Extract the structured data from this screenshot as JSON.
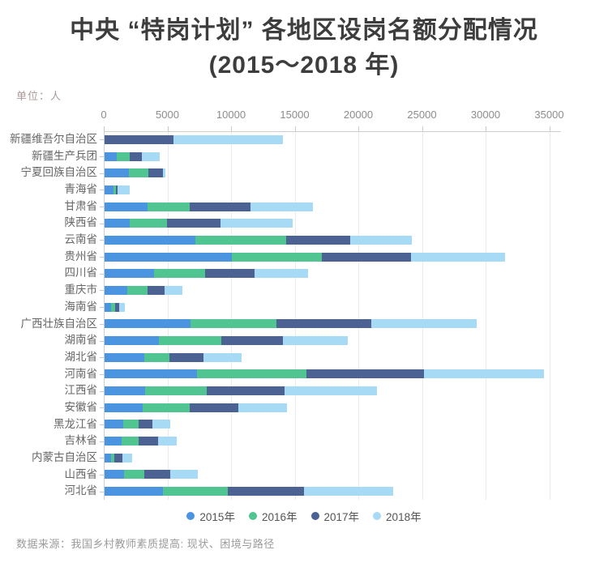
{
  "title": {
    "line1": "中央 “特岗计划” 各地区设岗名额分配情况",
    "line2": "(2015～2018 年)"
  },
  "unit_label": "单位：人",
  "source": "数据来源：我国乡村教师素质提高: 现状、困境与路径",
  "colors": {
    "y2015": "#4b94e0",
    "y2016": "#50c592",
    "y2017": "#4c6292",
    "y2018": "#a6daf5",
    "title_text": "#3d3d3d",
    "axis_text": "#8c8c8c",
    "category_text": "#666666",
    "unit_text": "#ad9a9a",
    "source_text": "#9b9b9b",
    "grid": "#ebebeb"
  },
  "chart_data": {
    "type": "bar",
    "orientation": "horizontal-stacked",
    "title": "中央 “特岗计划” 各地区设岗名额分配情况 (2015～2018 年)",
    "unit": "人",
    "grid": true,
    "legend_position": "bottom",
    "xlim": [
      0,
      36000
    ],
    "xticks": [
      0,
      5000,
      10000,
      15000,
      20000,
      25000,
      30000,
      35000
    ],
    "categories": [
      "新疆维吾尔自治区",
      "新疆生产兵团",
      "宁夏回族自治区",
      "青海省",
      "甘肃省",
      "陕西省",
      "云南省",
      "贵州省",
      "四川省",
      "重庆市",
      "海南省",
      "广西壮族自治区",
      "湖南省",
      "湖北省",
      "河南省",
      "江西省",
      "安徽省",
      "黑龙江省",
      "吉林省",
      "内蒙古自治区",
      "山西省",
      "河北省"
    ],
    "series": [
      {
        "name": "2015年",
        "color": "#4b94e0",
        "values": [
          0,
          950,
          1930,
          700,
          3350,
          1970,
          7110,
          10020,
          3860,
          1800,
          490,
          6730,
          4250,
          3140,
          7280,
          3190,
          2990,
          1490,
          1340,
          530,
          1550,
          4560
        ]
      },
      {
        "name": "2016年",
        "color": "#50c592",
        "values": [
          0,
          1000,
          1530,
          170,
          3330,
          2910,
          7180,
          7030,
          4020,
          1550,
          360,
          6770,
          4930,
          1950,
          8600,
          4840,
          3690,
          1170,
          1360,
          260,
          1570,
          5140
        ]
      },
      {
        "name": "2017年",
        "color": "#4c6292",
        "values": [
          5400,
          1000,
          1150,
          130,
          4760,
          4200,
          5010,
          7010,
          3930,
          1380,
          280,
          7470,
          4820,
          2700,
          9240,
          6120,
          3800,
          1100,
          1490,
          590,
          2020,
          5970
        ]
      },
      {
        "name": "2018年",
        "color": "#a6daf5",
        "values": [
          8600,
          1400,
          190,
          950,
          4930,
          5730,
          4820,
          7430,
          4190,
          1400,
          490,
          8240,
          5140,
          3000,
          9400,
          7250,
          3830,
          1380,
          1490,
          790,
          2190,
          6990
        ]
      }
    ]
  }
}
